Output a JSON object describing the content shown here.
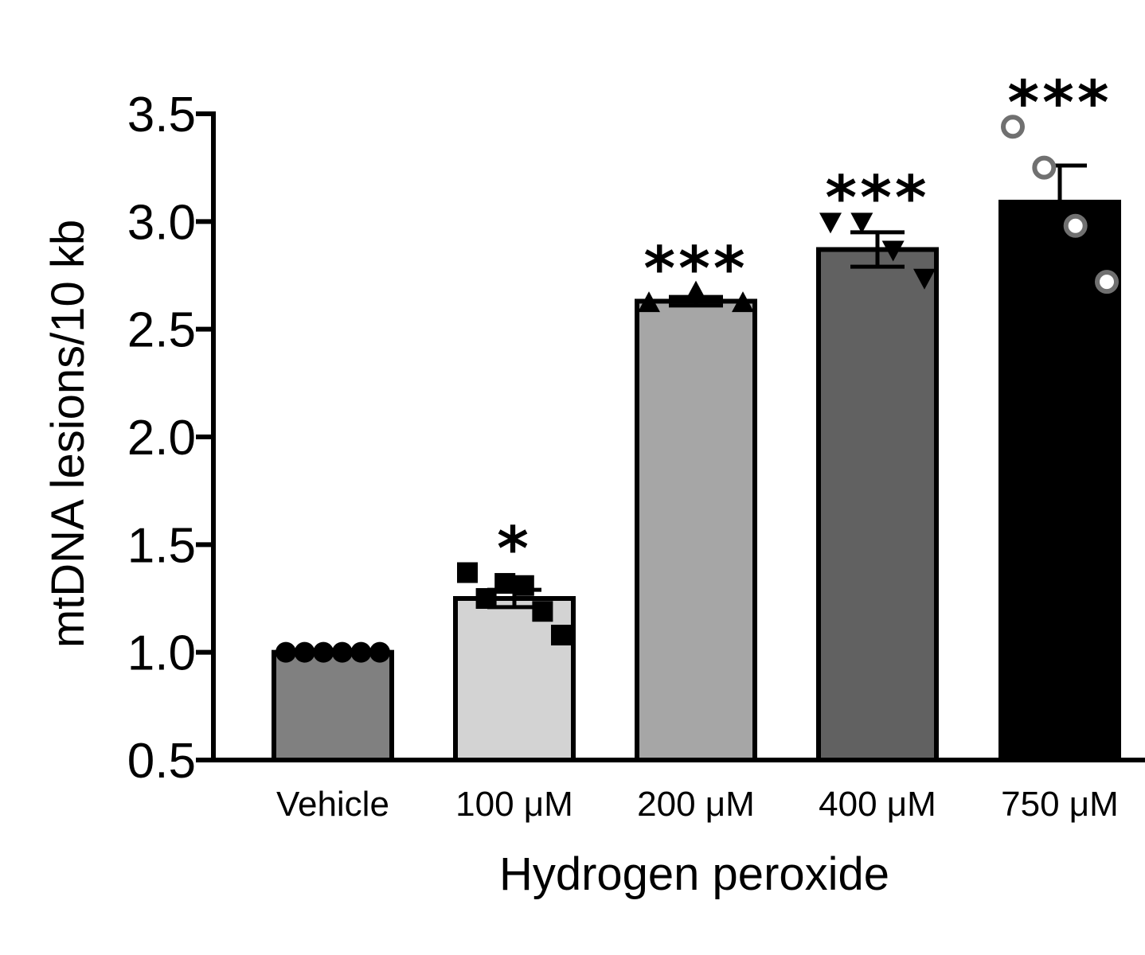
{
  "chart_data": {
    "type": "bar",
    "xlabel": "Hydrogen peroxide",
    "ylabel": "mtDNA lesions/10 kb",
    "ylim": [
      0.5,
      3.5
    ],
    "yticks": [
      "0.5",
      "1.0",
      "1.5",
      "2.0",
      "2.5",
      "3.0",
      "3.5"
    ],
    "categories": [
      "Vehicle",
      "100 μM",
      "200 μM",
      "400 μM",
      "750 μM"
    ],
    "values": [
      1.0,
      1.25,
      2.63,
      2.87,
      3.09
    ],
    "errors": [
      0.0,
      0.04,
      0.02,
      0.08,
      0.17
    ],
    "significance": [
      "",
      "*",
      "***",
      "***",
      "***"
    ],
    "bar_colors": [
      "#808080",
      "#d3d3d3",
      "#a6a6a6",
      "#616161",
      "#000000"
    ],
    "point_markers": [
      "circle",
      "square",
      "triangle-up",
      "triangle-down",
      "open-circle"
    ],
    "points": [
      [
        1.0,
        1.0,
        1.0,
        1.0,
        1.0,
        1.0
      ],
      [
        1.37,
        1.25,
        1.32,
        1.31,
        1.19,
        1.08
      ],
      [
        2.62,
        2.67,
        2.62
      ],
      [
        3.0,
        3.0,
        2.87,
        2.74
      ],
      [
        3.44,
        3.25,
        2.98,
        2.72
      ]
    ],
    "grid": false,
    "legend": "none"
  }
}
